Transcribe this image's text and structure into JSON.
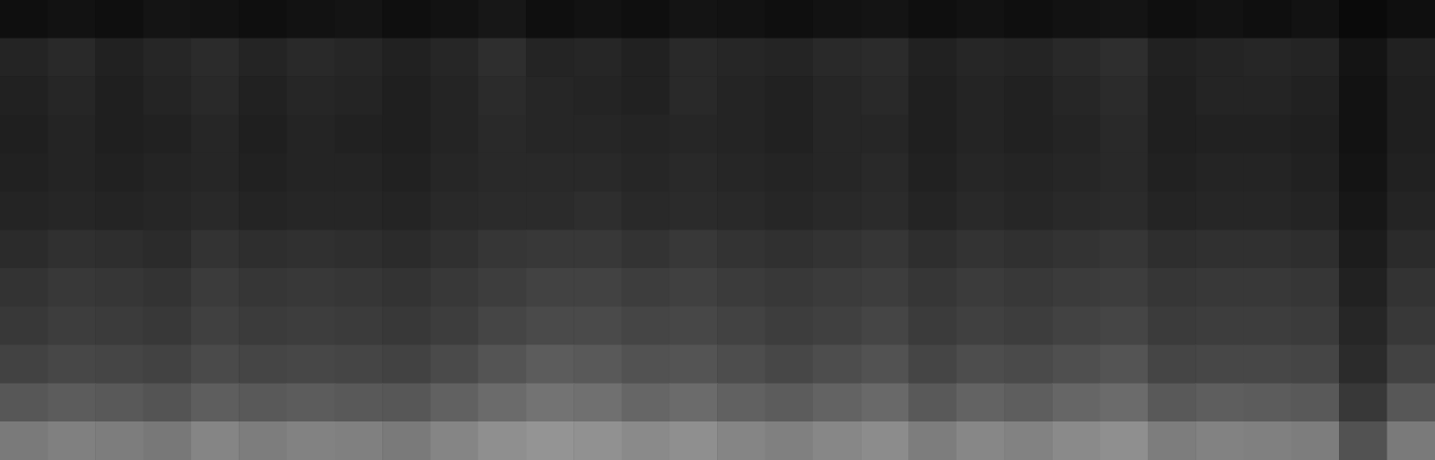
{
  "chart_data": {
    "type": "heatmap",
    "tick_labels": false,
    "grid": false,
    "zlim": [
      0,
      100
    ],
    "cells": [
      [
        6,
        7,
        6,
        8,
        7,
        6,
        7,
        8,
        6,
        7,
        9,
        6,
        7,
        6,
        8,
        7,
        6,
        7,
        8,
        6,
        7,
        6,
        7,
        8,
        6,
        7,
        6,
        7,
        4,
        6
      ],
      [
        14,
        16,
        13,
        15,
        17,
        14,
        16,
        15,
        13,
        15,
        18,
        14,
        15,
        13,
        16,
        15,
        14,
        16,
        17,
        13,
        15,
        14,
        16,
        18,
        13,
        14,
        15,
        14,
        8,
        13
      ],
      [
        13,
        15,
        12,
        14,
        16,
        13,
        15,
        14,
        12,
        14,
        17,
        15,
        14,
        13,
        16,
        14,
        13,
        15,
        16,
        12,
        14,
        13,
        15,
        17,
        12,
        14,
        14,
        13,
        7,
        12
      ],
      [
        12,
        14,
        12,
        13,
        15,
        12,
        14,
        13,
        12,
        14,
        16,
        15,
        15,
        14,
        15,
        14,
        13,
        15,
        15,
        12,
        14,
        13,
        14,
        16,
        12,
        13,
        13,
        12,
        7,
        12
      ],
      [
        13,
        14,
        13,
        14,
        15,
        13,
        14,
        14,
        13,
        15,
        16,
        16,
        16,
        15,
        16,
        15,
        14,
        15,
        16,
        13,
        15,
        14,
        15,
        16,
        13,
        14,
        14,
        13,
        8,
        13
      ],
      [
        14,
        15,
        14,
        15,
        16,
        14,
        15,
        15,
        14,
        16,
        17,
        17,
        18,
        16,
        17,
        16,
        15,
        16,
        17,
        14,
        16,
        15,
        16,
        17,
        14,
        15,
        15,
        14,
        9,
        14
      ],
      [
        17,
        19,
        18,
        17,
        20,
        18,
        19,
        18,
        17,
        19,
        21,
        22,
        22,
        20,
        22,
        20,
        19,
        20,
        21,
        18,
        20,
        19,
        20,
        21,
        18,
        19,
        19,
        18,
        11,
        17
      ],
      [
        20,
        22,
        21,
        20,
        23,
        21,
        22,
        21,
        20,
        22,
        24,
        26,
        26,
        24,
        25,
        23,
        22,
        23,
        24,
        21,
        23,
        22,
        23,
        24,
        21,
        22,
        22,
        21,
        13,
        20
      ],
      [
        22,
        24,
        23,
        22,
        25,
        23,
        24,
        23,
        22,
        24,
        27,
        29,
        29,
        27,
        28,
        26,
        24,
        25,
        27,
        23,
        25,
        24,
        26,
        27,
        23,
        24,
        24,
        23,
        15,
        22
      ],
      [
        26,
        28,
        27,
        26,
        29,
        27,
        28,
        27,
        26,
        29,
        33,
        36,
        35,
        32,
        33,
        30,
        28,
        30,
        32,
        27,
        30,
        29,
        31,
        33,
        27,
        28,
        28,
        27,
        17,
        26
      ],
      [
        34,
        36,
        35,
        33,
        37,
        35,
        36,
        35,
        34,
        38,
        42,
        45,
        44,
        40,
        42,
        38,
        36,
        39,
        41,
        35,
        39,
        37,
        40,
        42,
        35,
        37,
        36,
        35,
        22,
        34
      ],
      [
        48,
        50,
        49,
        47,
        52,
        49,
        51,
        50,
        48,
        52,
        56,
        58,
        57,
        54,
        56,
        52,
        50,
        53,
        55,
        49,
        53,
        51,
        54,
        56,
        49,
        51,
        50,
        49,
        32,
        48
      ]
    ]
  }
}
